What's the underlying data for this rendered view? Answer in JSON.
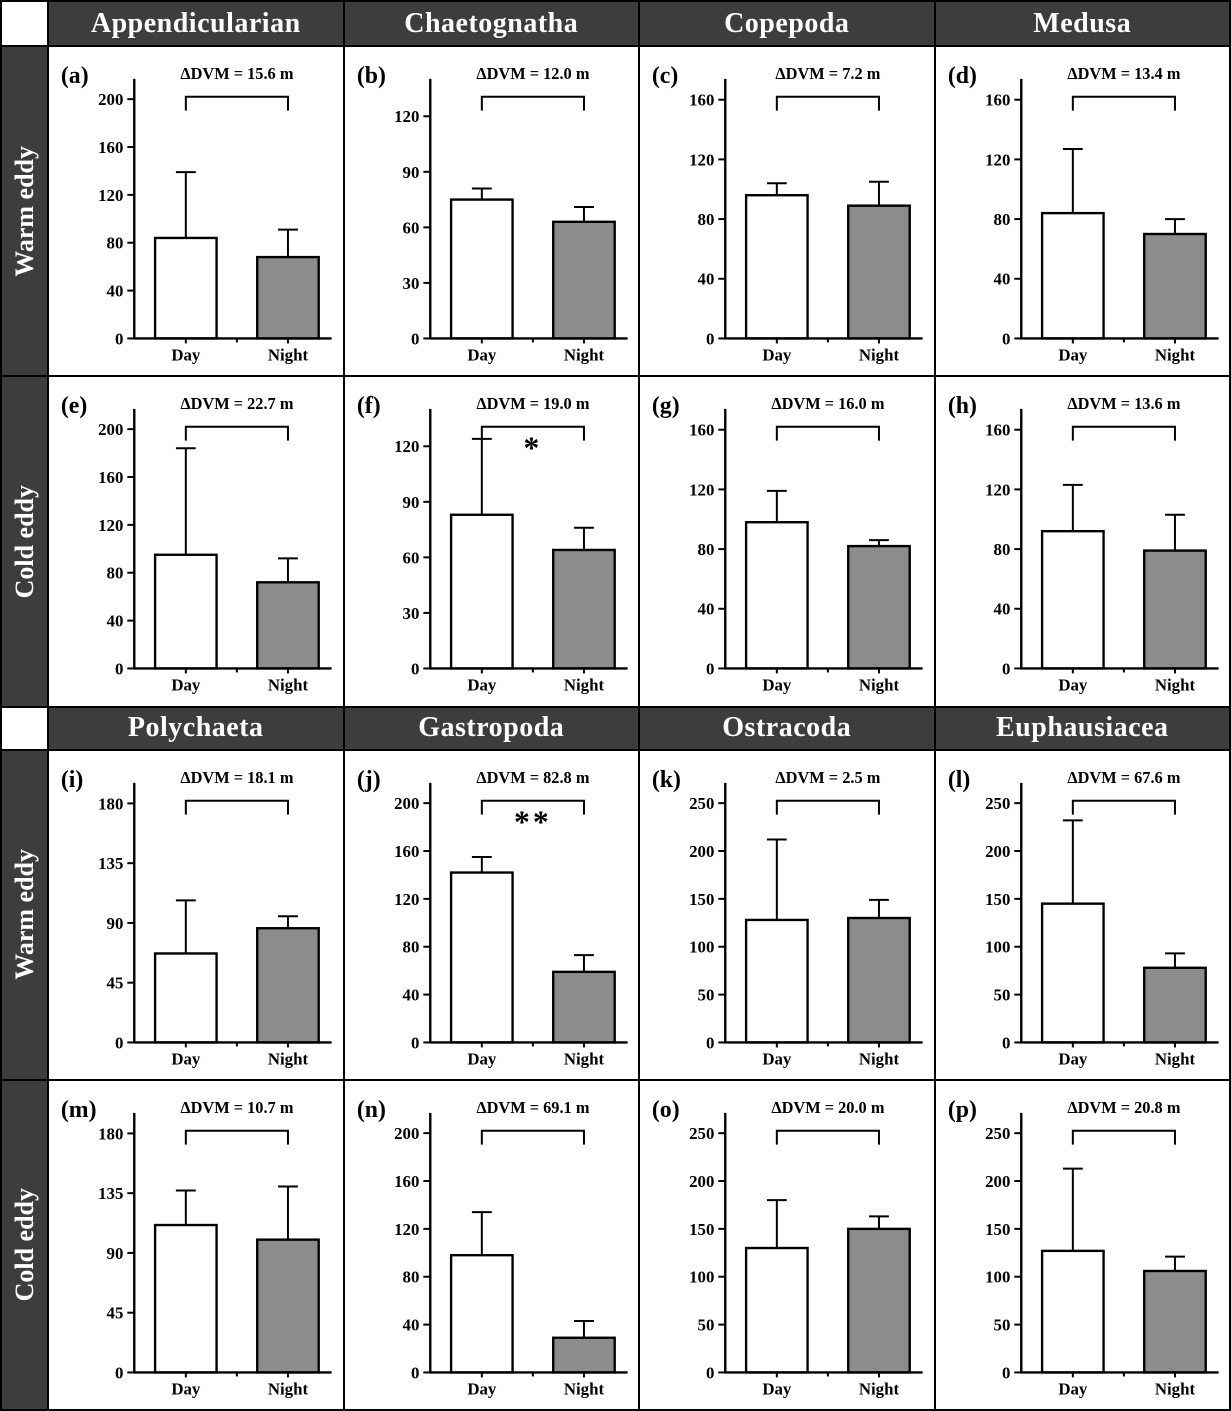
{
  "figure": {
    "top_headers": [
      "Appendicularian",
      "Chaetognatha",
      "Copepoda",
      "Medusa"
    ],
    "bottom_headers": [
      "Polychaeta",
      "Gastropoda",
      "Ostracoda",
      "Euphausiacea"
    ],
    "row_labels": [
      "Warm eddy",
      "Cold eddy",
      "Warm eddy",
      "Cold eddy"
    ]
  },
  "colors": {
    "header_bg": "#3d3d3d",
    "sidebar_bg": "#3d3d3d",
    "day_bar": "#ffffff",
    "night_bar": "#8c8c8c",
    "axis": "#000000",
    "grid_border": "#000000"
  },
  "chart_data": [
    {
      "panel": "a",
      "panel_label": "(a)",
      "taxon": "Appendicularian",
      "eddy": "Warm eddy",
      "type": "bar",
      "categories": [
        "Day",
        "Night"
      ],
      "values": [
        84,
        68
      ],
      "errors_upper": [
        55,
        23
      ],
      "annotation": "ΔDVM = 15.6 m",
      "significance": "",
      "yticks": [
        0,
        40,
        80,
        120,
        160,
        200
      ],
      "ylim_max": 212
    },
    {
      "panel": "b",
      "panel_label": "(b)",
      "taxon": "Chaetognatha",
      "eddy": "Warm eddy",
      "type": "bar",
      "categories": [
        "Day",
        "Night"
      ],
      "values": [
        75,
        63
      ],
      "errors_upper": [
        6,
        8
      ],
      "annotation": "ΔDVM = 12.0 m",
      "significance": "",
      "yticks": [
        0,
        30,
        60,
        90,
        120
      ],
      "ylim_max": 137
    },
    {
      "panel": "c",
      "panel_label": "(c)",
      "taxon": "Copepoda",
      "eddy": "Warm eddy",
      "type": "bar",
      "categories": [
        "Day",
        "Night"
      ],
      "values": [
        96,
        89
      ],
      "errors_upper": [
        8,
        16
      ],
      "annotation": "ΔDVM = 7.2 m",
      "significance": "",
      "yticks": [
        0,
        40,
        80,
        120,
        160
      ],
      "ylim_max": 170
    },
    {
      "panel": "d",
      "panel_label": "(d)",
      "taxon": "Medusa",
      "eddy": "Warm eddy",
      "type": "bar",
      "categories": [
        "Day",
        "Night"
      ],
      "values": [
        84,
        70
      ],
      "errors_upper": [
        43,
        10
      ],
      "annotation": "ΔDVM = 13.4 m",
      "significance": "",
      "yticks": [
        0,
        40,
        80,
        120,
        160
      ],
      "ylim_max": 170
    },
    {
      "panel": "e",
      "panel_label": "(e)",
      "taxon": "Appendicularian",
      "eddy": "Cold eddy",
      "type": "bar",
      "categories": [
        "Day",
        "Night"
      ],
      "values": [
        95,
        72
      ],
      "errors_upper": [
        89,
        20
      ],
      "annotation": "ΔDVM = 22.7 m",
      "significance": "",
      "yticks": [
        0,
        40,
        80,
        120,
        160,
        200
      ],
      "ylim_max": 212
    },
    {
      "panel": "f",
      "panel_label": "(f)",
      "taxon": "Chaetognatha",
      "eddy": "Cold eddy",
      "type": "bar",
      "categories": [
        "Day",
        "Night"
      ],
      "values": [
        83,
        64
      ],
      "errors_upper": [
        41,
        12
      ],
      "annotation": "ΔDVM = 19.0 m",
      "significance": "*",
      "yticks": [
        0,
        30,
        60,
        90,
        120
      ],
      "ylim_max": 137
    },
    {
      "panel": "g",
      "panel_label": "(g)",
      "taxon": "Copepoda",
      "eddy": "Cold eddy",
      "type": "bar",
      "categories": [
        "Day",
        "Night"
      ],
      "values": [
        98,
        82
      ],
      "errors_upper": [
        21,
        4
      ],
      "annotation": "ΔDVM = 16.0 m",
      "significance": "",
      "yticks": [
        0,
        40,
        80,
        120,
        160
      ],
      "ylim_max": 170
    },
    {
      "panel": "h",
      "panel_label": "(h)",
      "taxon": "Medusa",
      "eddy": "Cold eddy",
      "type": "bar",
      "categories": [
        "Day",
        "Night"
      ],
      "values": [
        92,
        79
      ],
      "errors_upper": [
        31,
        24
      ],
      "annotation": "ΔDVM = 13.6 m",
      "significance": "",
      "yticks": [
        0,
        40,
        80,
        120,
        160
      ],
      "ylim_max": 170
    },
    {
      "panel": "i",
      "panel_label": "(i)",
      "taxon": "Polychaeta",
      "eddy": "Warm eddy",
      "type": "bar",
      "categories": [
        "Day",
        "Night"
      ],
      "values": [
        67,
        86
      ],
      "errors_upper": [
        40,
        9
      ],
      "annotation": "ΔDVM = 18.1 m",
      "significance": "",
      "yticks": [
        0,
        45,
        90,
        135,
        180
      ],
      "ylim_max": 191
    },
    {
      "panel": "j",
      "panel_label": "(j)",
      "taxon": "Gastropoda",
      "eddy": "Warm eddy",
      "type": "bar",
      "categories": [
        "Day",
        "Night"
      ],
      "values": [
        142,
        59
      ],
      "errors_upper": [
        13,
        14
      ],
      "annotation": "ΔDVM = 82.8 m",
      "significance": "**",
      "yticks": [
        0,
        40,
        80,
        120,
        160,
        200
      ],
      "ylim_max": 212
    },
    {
      "panel": "k",
      "panel_label": "(k)",
      "taxon": "Ostracoda",
      "eddy": "Warm eddy",
      "type": "bar",
      "categories": [
        "Day",
        "Night"
      ],
      "values": [
        128,
        130
      ],
      "errors_upper": [
        84,
        19
      ],
      "annotation": "ΔDVM = 2.5 m",
      "significance": "",
      "yticks": [
        0,
        50,
        100,
        150,
        200,
        250
      ],
      "ylim_max": 265
    },
    {
      "panel": "l",
      "panel_label": "(l)",
      "taxon": "Euphausiacea",
      "eddy": "Warm eddy",
      "type": "bar",
      "categories": [
        "Day",
        "Night"
      ],
      "values": [
        145,
        78
      ],
      "errors_upper": [
        87,
        15
      ],
      "annotation": "ΔDVM = 67.6 m",
      "significance": "",
      "yticks": [
        0,
        50,
        100,
        150,
        200,
        250
      ],
      "ylim_max": 265
    },
    {
      "panel": "m",
      "panel_label": "(m)",
      "taxon": "Polychaeta",
      "eddy": "Cold eddy",
      "type": "bar",
      "categories": [
        "Day",
        "Night"
      ],
      "values": [
        111,
        100
      ],
      "errors_upper": [
        26,
        40
      ],
      "annotation": "ΔDVM = 10.7 m",
      "significance": "",
      "yticks": [
        0,
        45,
        90,
        135,
        180
      ],
      "ylim_max": 191
    },
    {
      "panel": "n",
      "panel_label": "(n)",
      "taxon": "Gastropoda",
      "eddy": "Cold eddy",
      "type": "bar",
      "categories": [
        "Day",
        "Night"
      ],
      "values": [
        98,
        29
      ],
      "errors_upper": [
        36,
        14
      ],
      "annotation": "ΔDVM = 69.1 m",
      "significance": "",
      "yticks": [
        0,
        40,
        80,
        120,
        160,
        200
      ],
      "ylim_max": 212
    },
    {
      "panel": "o",
      "panel_label": "(o)",
      "taxon": "Ostracoda",
      "eddy": "Cold eddy",
      "type": "bar",
      "categories": [
        "Day",
        "Night"
      ],
      "values": [
        130,
        150
      ],
      "errors_upper": [
        50,
        13
      ],
      "annotation": "ΔDVM = 20.0 m",
      "significance": "",
      "yticks": [
        0,
        50,
        100,
        150,
        200,
        250
      ],
      "ylim_max": 265
    },
    {
      "panel": "p",
      "panel_label": "(p)",
      "taxon": "Euphausiacea",
      "eddy": "Cold eddy",
      "type": "bar",
      "categories": [
        "Day",
        "Night"
      ],
      "values": [
        127,
        106
      ],
      "errors_upper": [
        86,
        15
      ],
      "annotation": "ΔDVM = 20.8 m",
      "significance": "",
      "yticks": [
        0,
        50,
        100,
        150,
        200,
        250
      ],
      "ylim_max": 265
    }
  ]
}
